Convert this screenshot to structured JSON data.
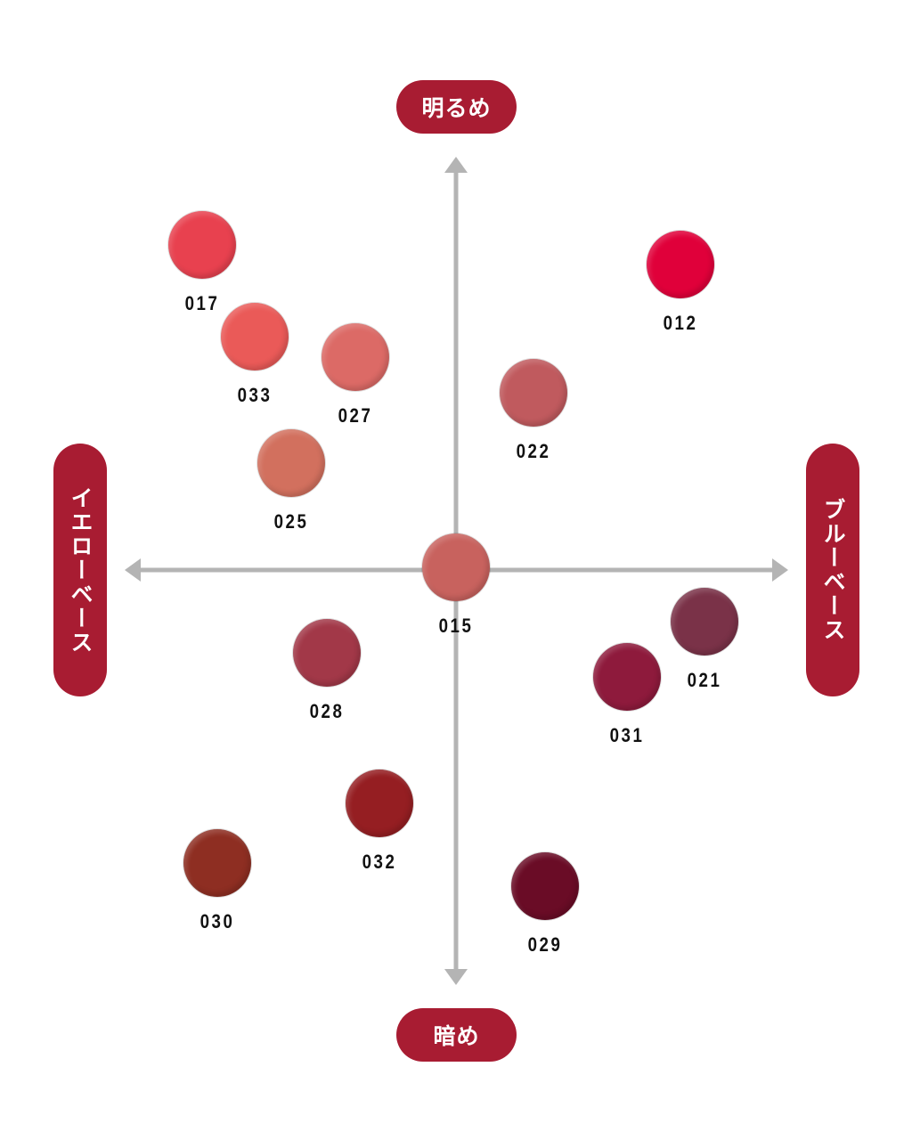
{
  "axes": {
    "top_label": "明るめ",
    "bottom_label": "暗め",
    "left_label": "イエローベース",
    "right_label": "ブルーベース",
    "pill_color": "#a81c32",
    "axis_color": "#b4b4b4"
  },
  "swatches": [
    {
      "code": "017",
      "color": "#e8414f"
    },
    {
      "code": "033",
      "color": "#ea5a58"
    },
    {
      "code": "027",
      "color": "#dc6a66"
    },
    {
      "code": "025",
      "color": "#d2705e"
    },
    {
      "code": "022",
      "color": "#c05a5e"
    },
    {
      "code": "012",
      "color": "#e0003a"
    },
    {
      "code": "015",
      "color": "#c8625e"
    },
    {
      "code": "028",
      "color": "#a23848"
    },
    {
      "code": "021",
      "color": "#7a3248"
    },
    {
      "code": "031",
      "color": "#8e1a3c"
    },
    {
      "code": "032",
      "color": "#951e22"
    },
    {
      "code": "030",
      "color": "#8e2e22"
    },
    {
      "code": "029",
      "color": "#6a0c26"
    }
  ]
}
